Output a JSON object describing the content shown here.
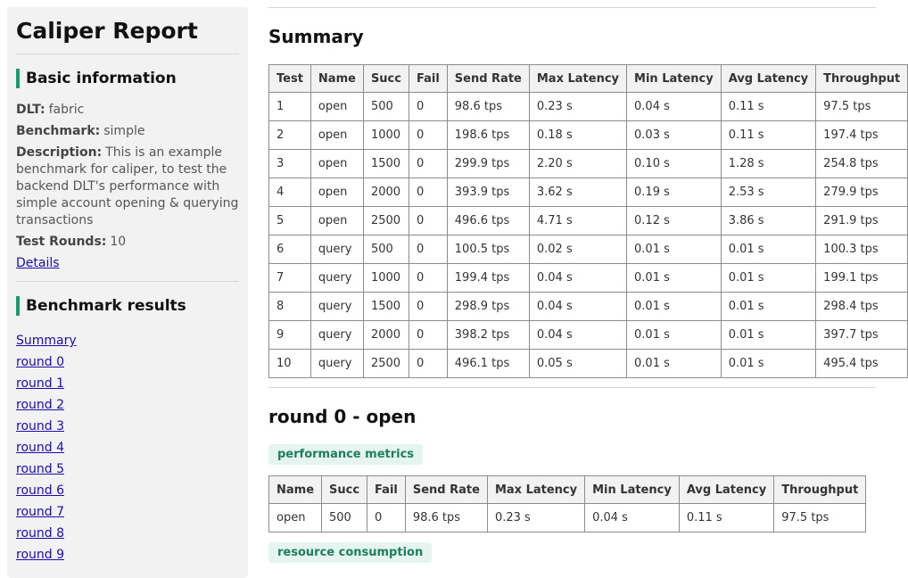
{
  "sidebar": {
    "title": "Caliper Report",
    "basic_info_title": "Basic information",
    "dlt_label": "DLT:",
    "dlt_value": "fabric",
    "benchmark_label": "Benchmark:",
    "benchmark_value": "simple",
    "description_label": "Description:",
    "description_value": "This is an example benchmark for caliper, to test the backend DLT's performance with simple account opening & querying transactions",
    "rounds_label": "Test Rounds:",
    "rounds_value": "10",
    "details_link": "Details",
    "results_title": "Benchmark results",
    "nav": [
      "Summary",
      "round 0",
      "round 1",
      "round 2",
      "round 3",
      "round 4",
      "round 5",
      "round 6",
      "round 7",
      "round 8",
      "round 9"
    ]
  },
  "summary": {
    "title": "Summary",
    "headers": [
      "Test",
      "Name",
      "Succ",
      "Fail",
      "Send Rate",
      "Max Latency",
      "Min Latency",
      "Avg Latency",
      "Throughput"
    ],
    "rows": [
      [
        "1",
        "open",
        "500",
        "0",
        "98.6 tps",
        "0.23 s",
        "0.04 s",
        "0.11 s",
        "97.5 tps"
      ],
      [
        "2",
        "open",
        "1000",
        "0",
        "198.6 tps",
        "0.18 s",
        "0.03 s",
        "0.11 s",
        "197.4 tps"
      ],
      [
        "3",
        "open",
        "1500",
        "0",
        "299.9 tps",
        "2.20 s",
        "0.10 s",
        "1.28 s",
        "254.8 tps"
      ],
      [
        "4",
        "open",
        "2000",
        "0",
        "393.9 tps",
        "3.62 s",
        "0.19 s",
        "2.53 s",
        "279.9 tps"
      ],
      [
        "5",
        "open",
        "2500",
        "0",
        "496.6 tps",
        "4.71 s",
        "0.12 s",
        "3.86 s",
        "291.9 tps"
      ],
      [
        "6",
        "query",
        "500",
        "0",
        "100.5 tps",
        "0.02 s",
        "0.01 s",
        "0.01 s",
        "100.3 tps"
      ],
      [
        "7",
        "query",
        "1000",
        "0",
        "199.4 tps",
        "0.04 s",
        "0.01 s",
        "0.01 s",
        "199.1 tps"
      ],
      [
        "8",
        "query",
        "1500",
        "0",
        "298.9 tps",
        "0.04 s",
        "0.01 s",
        "0.01 s",
        "298.4 tps"
      ],
      [
        "9",
        "query",
        "2000",
        "0",
        "398.2 tps",
        "0.04 s",
        "0.01 s",
        "0.01 s",
        "397.7 tps"
      ],
      [
        "10",
        "query",
        "2500",
        "0",
        "496.1 tps",
        "0.05 s",
        "0.01 s",
        "0.01 s",
        "495.4 tps"
      ]
    ]
  },
  "round0": {
    "title": "round 0 - open",
    "perf_tag": "performance metrics",
    "headers": [
      "Name",
      "Succ",
      "Fail",
      "Send Rate",
      "Max Latency",
      "Min Latency",
      "Avg Latency",
      "Throughput"
    ],
    "row": [
      "open",
      "500",
      "0",
      "98.6 tps",
      "0.23 s",
      "0.04 s",
      "0.11 s",
      "97.5 tps"
    ],
    "resource_tag": "resource consumption"
  },
  "colors": {
    "accent": "#1d9a6c",
    "link": "#1a0dab",
    "sidebar_bg": "#f2f2f2",
    "tag_bg": "#e6f4ef"
  }
}
